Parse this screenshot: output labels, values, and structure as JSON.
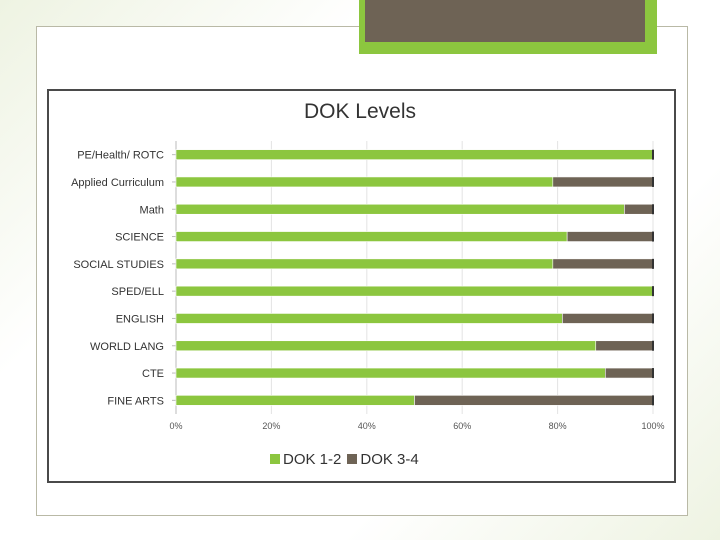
{
  "chart_data": {
    "type": "bar",
    "orientation": "horizontal",
    "stacked": true,
    "percent": true,
    "title": "DOK Levels",
    "categories": [
      "PE/Health/ ROTC",
      "Applied Curriculum",
      "Math",
      "SCIENCE",
      "SOCIAL STUDIES",
      "SPED/ELL",
      "ENGLISH",
      "WORLD LANG",
      "CTE",
      "FINE ARTS"
    ],
    "series": [
      {
        "name": "DOK 1-2",
        "color": "#8cc63f",
        "values": [
          100,
          79,
          94,
          82,
          79,
          100,
          81,
          88,
          90,
          50
        ]
      },
      {
        "name": "DOK 3-4",
        "color": "#6e6355",
        "values": [
          0,
          21,
          6,
          18,
          21,
          0,
          19,
          12,
          10,
          50
        ]
      }
    ],
    "xticks": [
      "0%",
      "20%",
      "40%",
      "60%",
      "80%",
      "100%"
    ],
    "xlim": [
      0,
      100
    ],
    "legend_position": "bottom",
    "grid": true
  }
}
